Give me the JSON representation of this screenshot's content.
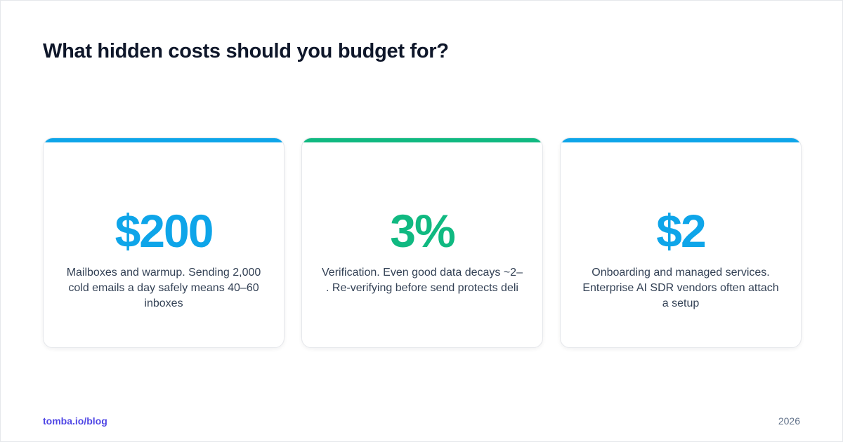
{
  "header": {
    "title": "What hidden costs should you budget for?"
  },
  "cards": [
    {
      "value": "$200",
      "description": "Mailboxes and warmup. Sending 2,000 cold emails a day safely means 40–60 inboxes",
      "accent_color": "#0ea5e9"
    },
    {
      "value": "3%",
      "description": "Verification. Even good data decays ~2– . Re-verifying before send protects deli",
      "accent_color": "#10b981"
    },
    {
      "value": "$2",
      "description": "Onboarding and managed services. Enterprise AI SDR vendors often attach a setup",
      "accent_color": "#0ea5e9"
    }
  ],
  "footer": {
    "link": "tomba.io/blog",
    "year": "2026"
  },
  "colors": {
    "title": "#0f172a",
    "link": "#4f46e5",
    "muted": "#64748b"
  }
}
